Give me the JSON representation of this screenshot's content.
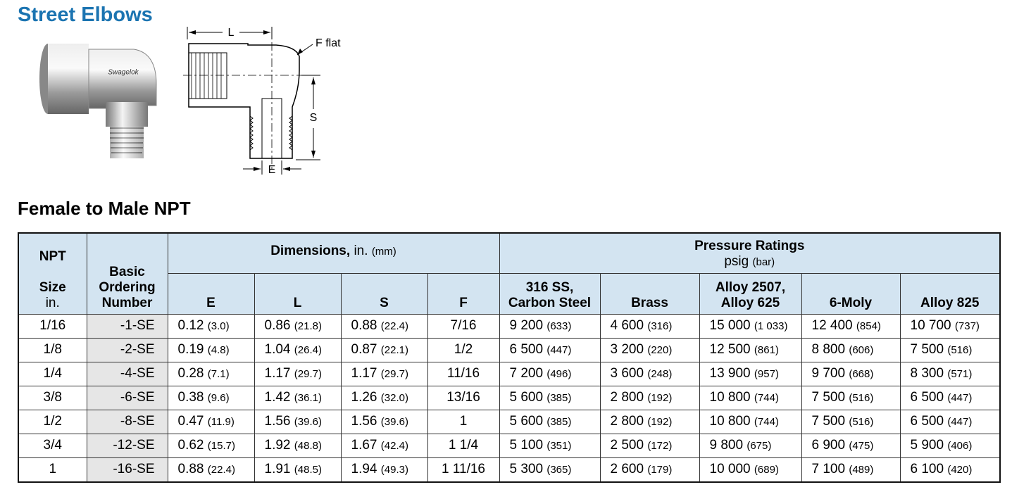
{
  "title": "Street Elbows",
  "diagram": {
    "length": "L",
    "flat": "F flat",
    "height": "S",
    "end": "E"
  },
  "subtitle": "Female to Male NPT",
  "table": {
    "header": {
      "size": [
        "NPT",
        "Size",
        "in."
      ],
      "ordering": [
        "Basic",
        "Ordering",
        "Number"
      ],
      "dimensions": [
        "Dimensions,",
        "in.",
        "(mm)"
      ],
      "pressure": [
        "Pressure Ratings",
        "psig",
        "(bar)"
      ],
      "columns": [
        [
          "E"
        ],
        [
          "L"
        ],
        [
          "S"
        ],
        [
          "F"
        ],
        [
          "316 SS,",
          "Carbon Steel"
        ],
        [
          "Brass"
        ],
        [
          "Alloy 2507,",
          "Alloy 625"
        ],
        [
          "6-Moly"
        ],
        [
          "Alloy 825"
        ]
      ]
    },
    "rows": [
      [
        "1/16",
        "-1-SE",
        [
          "0.12",
          "(3.0)"
        ],
        [
          "0.86",
          "(21.8)"
        ],
        [
          "0.88",
          "(22.4)"
        ],
        "7/16",
        [
          "9 200",
          "(633)"
        ],
        [
          "4 600",
          "(316)"
        ],
        [
          "15 000",
          "(1 033)"
        ],
        [
          "12 400",
          "(854)"
        ],
        [
          "10 700",
          "(737)"
        ]
      ],
      [
        "1/8",
        "-2-SE",
        [
          "0.19",
          "(4.8)"
        ],
        [
          "1.04",
          "(26.4)"
        ],
        [
          "0.87",
          "(22.1)"
        ],
        "1/2",
        [
          "6 500",
          "(447)"
        ],
        [
          "3 200",
          "(220)"
        ],
        [
          "12 500",
          "(861)"
        ],
        [
          "8 800",
          "(606)"
        ],
        [
          "7 500",
          "(516)"
        ]
      ],
      [
        "1/4",
        "-4-SE",
        [
          "0.28",
          "(7.1)"
        ],
        [
          "1.17",
          "(29.7)"
        ],
        [
          "1.17",
          "(29.7)"
        ],
        "11/16",
        [
          "7 200",
          "(496)"
        ],
        [
          "3 600",
          "(248)"
        ],
        [
          "13 900",
          "(957)"
        ],
        [
          "9 700",
          "(668)"
        ],
        [
          "8 300",
          "(571)"
        ]
      ],
      [
        "3/8",
        "-6-SE",
        [
          "0.38",
          "(9.6)"
        ],
        [
          "1.42",
          "(36.1)"
        ],
        [
          "1.26",
          "(32.0)"
        ],
        "13/16",
        [
          "5 600",
          "(385)"
        ],
        [
          "2 800",
          "(192)"
        ],
        [
          "10 800",
          "(744)"
        ],
        [
          "7 500",
          "(516)"
        ],
        [
          "6 500",
          "(447)"
        ]
      ],
      [
        "1/2",
        "-8-SE",
        [
          "0.47",
          "(11.9)"
        ],
        [
          "1.56",
          "(39.6)"
        ],
        [
          "1.56",
          "(39.6)"
        ],
        "1",
        [
          "5 600",
          "(385)"
        ],
        [
          "2 800",
          "(192)"
        ],
        [
          "10 800",
          "(744)"
        ],
        [
          "7 500",
          "(516)"
        ],
        [
          "6 500",
          "(447)"
        ]
      ],
      [
        "3/4",
        "-12-SE",
        [
          "0.62",
          "(15.7)"
        ],
        [
          "1.92",
          "(48.8)"
        ],
        [
          "1.67",
          "(42.4)"
        ],
        "1 1/4",
        [
          "5 100",
          "(351)"
        ],
        [
          "2 500",
          "(172)"
        ],
        [
          "9 800",
          "(675)"
        ],
        [
          "6 900",
          "(475)"
        ],
        [
          "5 900",
          "(406)"
        ]
      ],
      [
        "1",
        "-16-SE",
        [
          "0.88",
          "(22.4)"
        ],
        [
          "1.91",
          "(48.5)"
        ],
        [
          "1.94",
          "(49.3)"
        ],
        "1 11/16",
        [
          "5 300",
          "(365)"
        ],
        [
          "2 600",
          "(179)"
        ],
        [
          "10 000",
          "(689)"
        ],
        [
          "7 100",
          "(489)"
        ],
        [
          "6 100",
          "(420)"
        ]
      ]
    ]
  }
}
